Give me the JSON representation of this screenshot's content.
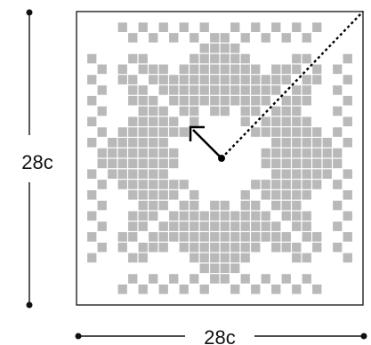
{
  "dimensions": {
    "height_label": "28c",
    "width_label": "28c"
  },
  "pattern": {
    "grid": 28,
    "colors": {
      "motif": "#b9b9b9",
      "ground": "#ffffff",
      "frame": "#222222",
      "guide": "#000000"
    },
    "motif_name": "snowflake-knit-chart"
  },
  "annotations": {
    "start_marker": "center-dot",
    "direction_arrow": "up-left",
    "diagonal_guide": "dotted-to-top-right"
  }
}
